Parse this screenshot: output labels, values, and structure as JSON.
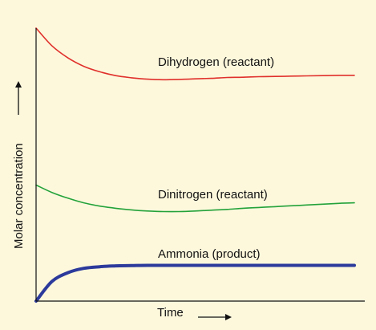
{
  "chart_data": {
    "type": "line",
    "xlabel": "Time",
    "ylabel": "Molar concentration",
    "xlim": [
      0,
      100
    ],
    "ylim": [
      0,
      100
    ],
    "grid": false,
    "legend": "inline labels beside each curve",
    "axis_arrows": true,
    "series": [
      {
        "name": "Dihydrogen (reactant)",
        "color": "#e0302b",
        "x": [
          0,
          5,
          10,
          15,
          20,
          25,
          30,
          35,
          40,
          45,
          50,
          55,
          60,
          65,
          70,
          75,
          80,
          85,
          90,
          95,
          100
        ],
        "values": [
          100,
          93.5,
          89.1,
          86.0,
          84.0,
          82.6,
          81.8,
          81.3,
          81.1,
          81.2,
          81.4,
          81.6,
          81.9,
          82.0,
          82.2,
          82.3,
          82.4,
          82.5,
          82.6,
          82.7,
          82.7
        ]
      },
      {
        "name": "Dinitrogen (reactant)",
        "color": "#23a23a",
        "x": [
          0,
          5,
          10,
          15,
          20,
          25,
          30,
          35,
          40,
          45,
          50,
          55,
          60,
          65,
          70,
          75,
          80,
          85,
          90,
          95,
          100
        ],
        "values": [
          42.5,
          39.8,
          37.7,
          36.0,
          34.8,
          34.0,
          33.4,
          33.0,
          32.8,
          32.8,
          33.0,
          33.3,
          33.6,
          34.0,
          34.3,
          34.6,
          34.9,
          35.2,
          35.5,
          35.8,
          36.0
        ]
      },
      {
        "name": "Ammonia (product)",
        "color": "#2b3a9b",
        "x": [
          0,
          5,
          10,
          15,
          20,
          25,
          30,
          35,
          40,
          45,
          50,
          55,
          60,
          65,
          70,
          75,
          80,
          85,
          90,
          95,
          100
        ],
        "values": [
          0,
          7.2,
          10.4,
          12.0,
          12.6,
          12.9,
          13.0,
          13.1,
          13.1,
          13.1,
          13.1,
          13.1,
          13.1,
          13.1,
          13.1,
          13.1,
          13.1,
          13.1,
          13.1,
          13.1,
          13.1
        ]
      }
    ]
  }
}
